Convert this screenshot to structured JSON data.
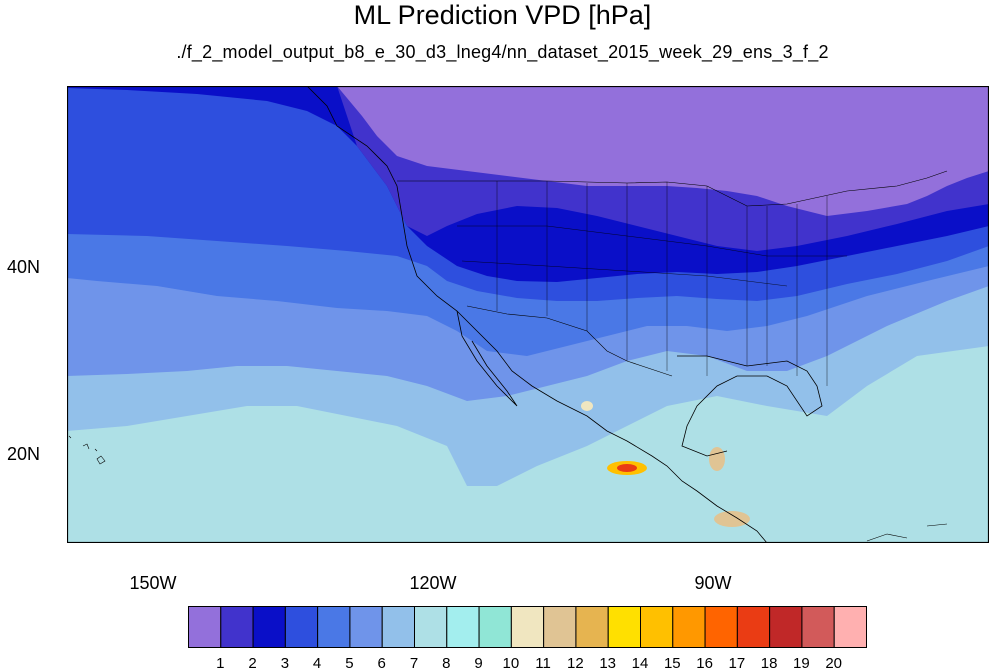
{
  "title": "ML Prediction VPD [hPa]",
  "subtitle": "./f_2_model_output_b8_e_30_d3_lneg4/nn_dataset_2015_week_29_ens_3_f_2",
  "map": {
    "lat_labels": [
      "40N",
      "20N"
    ],
    "lon_labels": [
      "150W",
      "120W",
      "90W"
    ],
    "projection": "cylindrical equidistant",
    "lon_range": [
      -160,
      -61
    ],
    "lat_range": [
      9,
      58
    ]
  },
  "colorbar": {
    "labels": [
      "1",
      "2",
      "3",
      "4",
      "5",
      "6",
      "7",
      "8",
      "9",
      "10",
      "11",
      "12",
      "13",
      "14",
      "15",
      "16",
      "17",
      "18",
      "19",
      "20"
    ],
    "colors": [
      "#9370db",
      "#4133cc",
      "#0a0fc8",
      "#2e4fde",
      "#4a78e6",
      "#6f94ea",
      "#92c0ea",
      "#aee0e6",
      "#a3eeee",
      "#90e6d6",
      "#f0e6c0",
      "#e0c494",
      "#e6b450",
      "#ffe000",
      "#ffc000",
      "#ff9800",
      "#ff6400",
      "#ea3c14",
      "#c02828",
      "#d25a5a",
      "#ffb0b0"
    ]
  }
}
